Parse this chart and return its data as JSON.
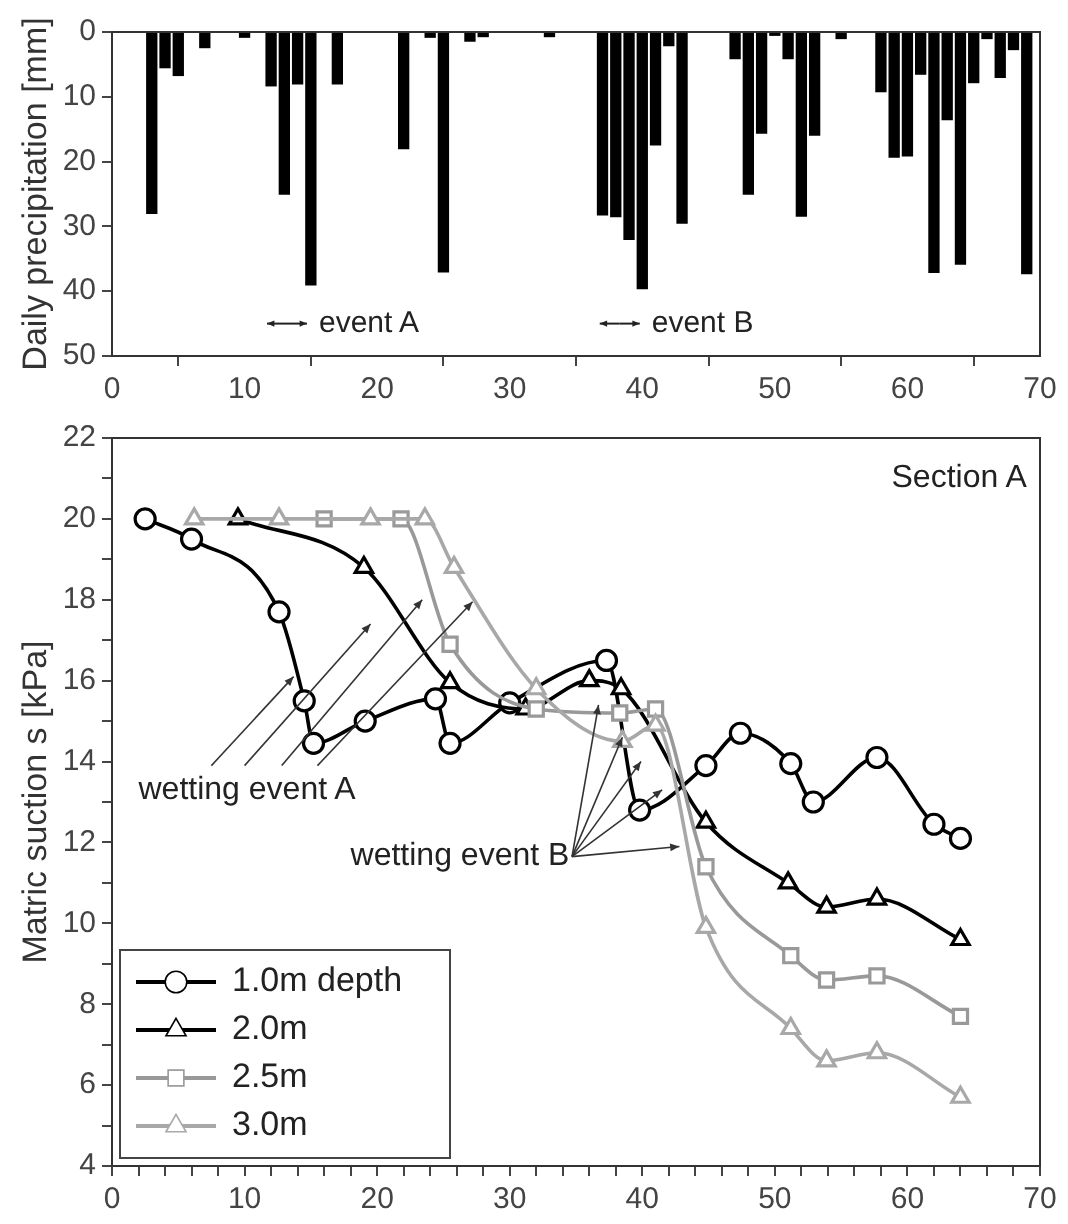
{
  "chart_data": [
    {
      "type": "bar",
      "ylabel": "Daily precipitation [mm]",
      "color": "#000000",
      "x": [
        3,
        4,
        5,
        7,
        10,
        12,
        13,
        14,
        15,
        17,
        22,
        24,
        25,
        27,
        28,
        33,
        37,
        38,
        39,
        40,
        41,
        42,
        43,
        47,
        48,
        49,
        50,
        51,
        52,
        53,
        55,
        58,
        59,
        60,
        61,
        62,
        63,
        64,
        65,
        66,
        67,
        68,
        69
      ],
      "values": [
        28,
        5.5,
        6.7,
        2.4,
        0.8,
        8.3,
        25,
        8,
        39,
        8,
        18,
        0.8,
        37,
        1.4,
        0.7,
        0.7,
        28.2,
        28.5,
        32,
        39.6,
        17.4,
        2.1,
        29.5,
        4.1,
        25,
        15.6,
        0.5,
        4.1,
        28.4,
        15.9,
        1,
        9.2,
        19.3,
        19.1,
        6.5,
        37.1,
        13.5,
        35.8,
        7.8,
        1,
        7,
        2.7,
        37.3
      ],
      "xlim": [
        0,
        70
      ],
      "xticks": [
        0,
        10,
        20,
        30,
        40,
        50,
        60,
        70
      ],
      "ylim": [
        50,
        0
      ],
      "yticks": [
        0,
        10,
        20,
        30,
        40,
        50
      ],
      "grid": false,
      "annotations": [
        "event A",
        "event B"
      ]
    },
    {
      "type": "line",
      "ylabel": "Matric suction s [kPa]",
      "series": [
        {
          "name": "1.0m depth",
          "color": "#000000",
          "marker": "circle",
          "x": [
            2.5,
            6,
            12.6,
            14.5,
            15.2,
            19.1,
            24.4,
            25.5,
            30,
            37.3,
            39.8,
            44.8,
            47.4,
            51.2,
            52.9,
            57.7,
            62,
            64
          ],
          "values": [
            20,
            19.5,
            17.7,
            15.5,
            14.45,
            15.0,
            15.55,
            14.45,
            15.45,
            16.5,
            12.8,
            13.9,
            14.7,
            13.95,
            13.0,
            14.1,
            12.45,
            12.1
          ]
        },
        {
          "name": "2.0m",
          "color": "#000000",
          "marker": "triangle",
          "x": [
            9.5,
            19,
            25.5,
            31.2,
            36,
            38.4,
            44.8,
            51,
            53.9,
            57.7,
            64
          ],
          "values": [
            20,
            18.8,
            15.95,
            15.3,
            16.0,
            15.8,
            12.5,
            11.0,
            10.4,
            10.6,
            9.6
          ]
        },
        {
          "name": "2.5m",
          "color": "#999999",
          "marker": "square",
          "x": [
            16,
            21.8,
            25.5,
            32,
            38.3,
            41,
            44.8,
            51.2,
            53.9,
            57.7,
            64
          ],
          "values": [
            20,
            20,
            16.9,
            15.3,
            15.2,
            15.3,
            11.4,
            9.2,
            8.6,
            8.7,
            7.7
          ]
        },
        {
          "name": "3.0m",
          "color": "#a8a8a8",
          "marker": "triangle",
          "x": [
            6.2,
            12.6,
            19.5,
            23.6,
            25.8,
            32,
            38.5,
            41,
            44.8,
            51.2,
            53.9,
            57.7,
            64
          ],
          "values": [
            20,
            20,
            20,
            20,
            18.8,
            15.8,
            14.5,
            14.9,
            9.9,
            7.4,
            6.6,
            6.8,
            5.7
          ]
        }
      ],
      "xlim": [
        0,
        70
      ],
      "xticks": [
        0,
        {
          "value": 2,
          "label": null
        },
        {
          "value": 4,
          "label": null
        },
        {
          "value": 6,
          "label": null
        },
        {
          "value": 8,
          "label": null
        },
        10,
        {
          "value": 12,
          "label": null
        },
        {
          "value": 14,
          "label": null
        },
        {
          "value": 16,
          "label": null
        },
        {
          "value": 18,
          "label": null
        },
        20,
        {
          "value": 22,
          "label": null
        },
        {
          "value": 24,
          "label": null
        },
        {
          "value": 26,
          "label": null
        },
        {
          "value": 28,
          "label": null
        },
        30,
        {
          "value": 32,
          "label": null
        },
        {
          "value": 34,
          "label": null
        },
        {
          "value": 36,
          "label": null
        },
        {
          "value": 38,
          "label": null
        },
        40,
        {
          "value": 42,
          "label": null
        },
        {
          "value": 44,
          "label": null
        },
        {
          "value": 46,
          "label": null
        },
        {
          "value": 48,
          "label": null
        },
        50,
        {
          "value": 52,
          "label": null
        },
        {
          "value": 54,
          "label": null
        },
        {
          "value": 56,
          "label": null
        },
        {
          "value": 58,
          "label": null
        },
        60,
        {
          "value": 62,
          "label": null
        },
        {
          "value": 64,
          "label": null
        },
        {
          "value": 66,
          "label": null
        },
        {
          "value": 68,
          "label": null
        },
        70
      ],
      "ylim": [
        4,
        22
      ],
      "yticks": [
        4,
        {
          "value": 5,
          "label": null
        },
        6,
        {
          "value": 7,
          "label": null
        },
        8,
        {
          "value": 9,
          "label": null
        },
        10,
        {
          "value": 11,
          "label": null
        },
        12,
        {
          "value": 13,
          "label": null
        },
        14,
        {
          "value": 15,
          "label": null
        },
        16,
        {
          "value": 17,
          "label": null
        },
        18,
        {
          "value": 19,
          "label": null
        },
        20,
        {
          "value": 21,
          "label": null
        },
        22
      ],
      "grid": false,
      "legend": "bottom left",
      "annotations": [
        "Section A",
        {
          "text": "wetting event A",
          "x": 13.7,
          "y": 16.1
        },
        {
          "text": "wetting event B",
          "x": 42.8,
          "y": 11.9
        }
      ]
    }
  ]
}
